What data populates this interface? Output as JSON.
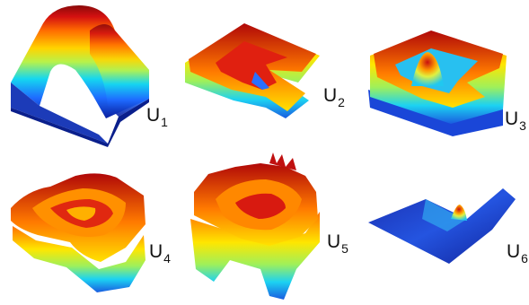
{
  "panels": [
    {
      "letter": "U",
      "index": "1",
      "shape": "u-dome"
    },
    {
      "letter": "U",
      "index": "2",
      "shape": "l-ring"
    },
    {
      "letter": "U",
      "index": "3",
      "shape": "ring-with-peak"
    },
    {
      "letter": "U",
      "index": "4",
      "shape": "wavy-ring"
    },
    {
      "letter": "U",
      "index": "5",
      "shape": "wavy-ring-spiky"
    },
    {
      "letter": "U",
      "index": "6",
      "shape": "flat-l-plate-peak"
    }
  ],
  "colormap": [
    "#00008f",
    "#0050ff",
    "#00d8ff",
    "#a0ff60",
    "#ffe000",
    "#ff6000",
    "#c00000",
    "#800000"
  ]
}
